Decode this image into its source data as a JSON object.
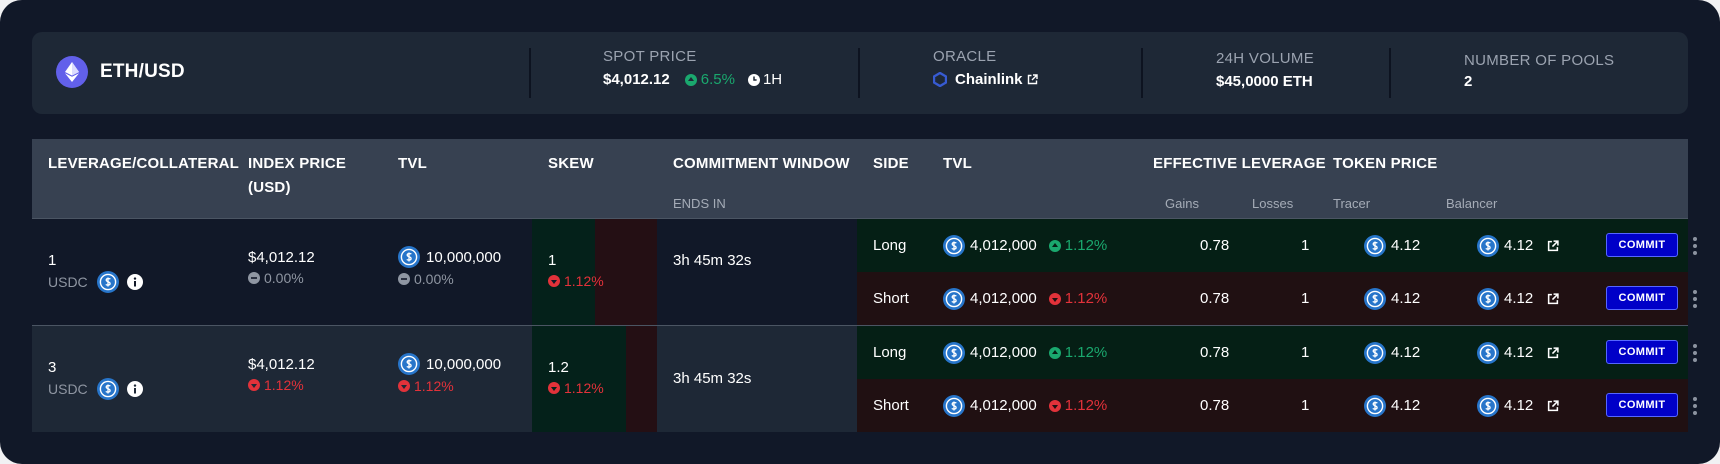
{
  "header": {
    "market": "ETH/USD",
    "spot_price": {
      "label": "SPOT PRICE",
      "value": "$4,012.12",
      "change": "6.5%",
      "period": "1H"
    },
    "oracle": {
      "label": "ORACLE",
      "value": "Chainlink"
    },
    "volume": {
      "label": "24H VOLUME",
      "value": "$45,0000 ETH"
    },
    "pools": {
      "label": "NUMBER OF POOLS",
      "value": "2"
    }
  },
  "columns": {
    "leverage": "LEVERAGE/COLLATERAL",
    "index_price": "INDEX PRICE",
    "index_price_unit": "(USD)",
    "tvl": "TVL",
    "skew": "SKEW",
    "commitment": "COMMITMENT WINDOW",
    "commitment_sub": "ENDS IN",
    "side": "SIDE",
    "side_tvl": "TVL",
    "effective_leverage": "EFFECTIVE LEVERAGE",
    "gains": "Gains",
    "losses": "Losses",
    "token_price": "TOKEN PRICE",
    "tracer": "Tracer",
    "balancer": "Balancer"
  },
  "pools": [
    {
      "leverage": "1",
      "collateral": "USDC",
      "index_price": "$4,012.12",
      "index_change": "0.00%",
      "tvl": "10,000,000",
      "tvl_change": "0.00%",
      "skew": "1",
      "skew_change": "1.12%",
      "skew_fraction": 0.5,
      "commit_window": "3h 45m 32s",
      "sides": [
        {
          "side": "Long",
          "tvl": "4,012,000",
          "change": "1.12%",
          "gains": "0.78",
          "losses": "1",
          "tracer": "4.12",
          "balancer": "4.12",
          "action": "COMMIT"
        },
        {
          "side": "Short",
          "tvl": "4,012,000",
          "change": "1.12%",
          "gains": "0.78",
          "losses": "1",
          "tracer": "4.12",
          "balancer": "4.12",
          "action": "COMMIT"
        }
      ]
    },
    {
      "leverage": "3",
      "collateral": "USDC",
      "index_price": "$4,012.12",
      "index_change": "1.12%",
      "tvl": "10,000,000",
      "tvl_change": "1.12%",
      "skew": "1.2",
      "skew_change": "1.12%",
      "skew_fraction": 0.75,
      "commit_window": "3h 45m 32s",
      "sides": [
        {
          "side": "Long",
          "tvl": "4,012,000",
          "change": "1.12%",
          "gains": "0.78",
          "losses": "1",
          "tracer": "4.12",
          "balancer": "4.12",
          "action": "COMMIT"
        },
        {
          "side": "Short",
          "tvl": "4,012,000",
          "change": "1.12%",
          "gains": "0.78",
          "losses": "1",
          "tracer": "4.12",
          "balancer": "4.12",
          "action": "COMMIT"
        }
      ]
    }
  ],
  "colors": {
    "positive": "#1aa86e",
    "negative": "#e2323a",
    "neutral": "#8f96a2",
    "commit": "#0000c8"
  },
  "icons": {
    "market": "ethereum-icon",
    "oracle": "chainlink-icon",
    "external": "external-link-icon",
    "clock": "clock-icon",
    "coin": "usdc-icon",
    "info": "info-icon"
  }
}
